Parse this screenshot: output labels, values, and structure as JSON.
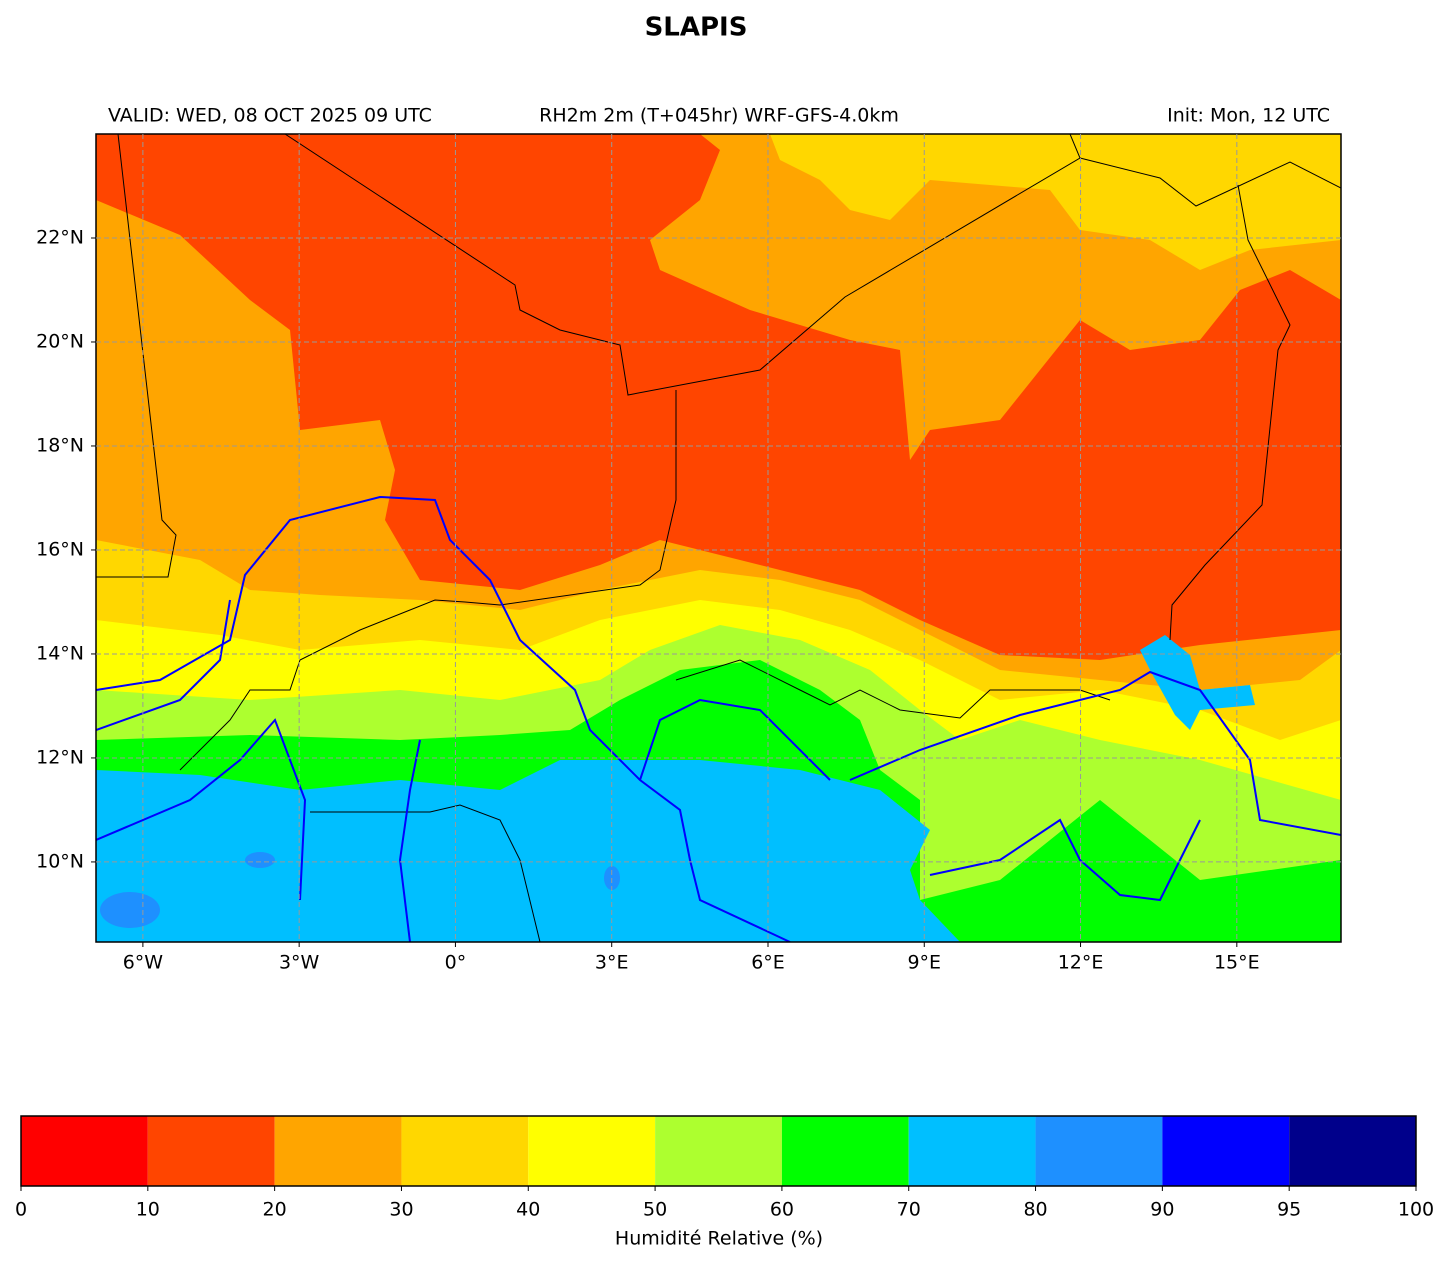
{
  "title": "SLAPIS",
  "subtitle_left": "VALID: WED, 08 OCT 2025 09 UTC",
  "subtitle_center": "RH2m 2m (T+045hr) WRF-GFS-4.0km",
  "subtitle_right": "Init: Mon, 12 UTC",
  "map": {
    "lon_lim": [
      -6.9,
      17.0
    ],
    "lat_lim": [
      8.46,
      24.0
    ],
    "grid": true,
    "lon_ticks": [
      {
        "value": -6,
        "label": "6°W"
      },
      {
        "value": -3,
        "label": "3°W"
      },
      {
        "value": 0,
        "label": "0°"
      },
      {
        "value": 3,
        "label": "3°E"
      },
      {
        "value": 6,
        "label": "6°E"
      },
      {
        "value": 9,
        "label": "9°E"
      },
      {
        "value": 12,
        "label": "12°E"
      },
      {
        "value": 15,
        "label": "15°E"
      }
    ],
    "lat_ticks": [
      {
        "value": 10,
        "label": "10°N"
      },
      {
        "value": 12,
        "label": "12°N"
      },
      {
        "value": 14,
        "label": "14°N"
      },
      {
        "value": 16,
        "label": "16°N"
      },
      {
        "value": 18,
        "label": "18°N"
      },
      {
        "value": 20,
        "label": "20°N"
      },
      {
        "value": 22,
        "label": "22°N"
      }
    ]
  },
  "colorbar": {
    "label": "Humidité Relative (%)",
    "bounds": [
      0,
      10,
      20,
      30,
      40,
      50,
      60,
      70,
      80,
      90,
      95,
      100
    ],
    "colors": [
      "#ff0000",
      "#ff4500",
      "#ffa500",
      "#ffd700",
      "#ffff00",
      "#adff2f",
      "#00ff00",
      "#00bfff",
      "#1e90ff",
      "#0000ff",
      "#00008b"
    ]
  }
}
